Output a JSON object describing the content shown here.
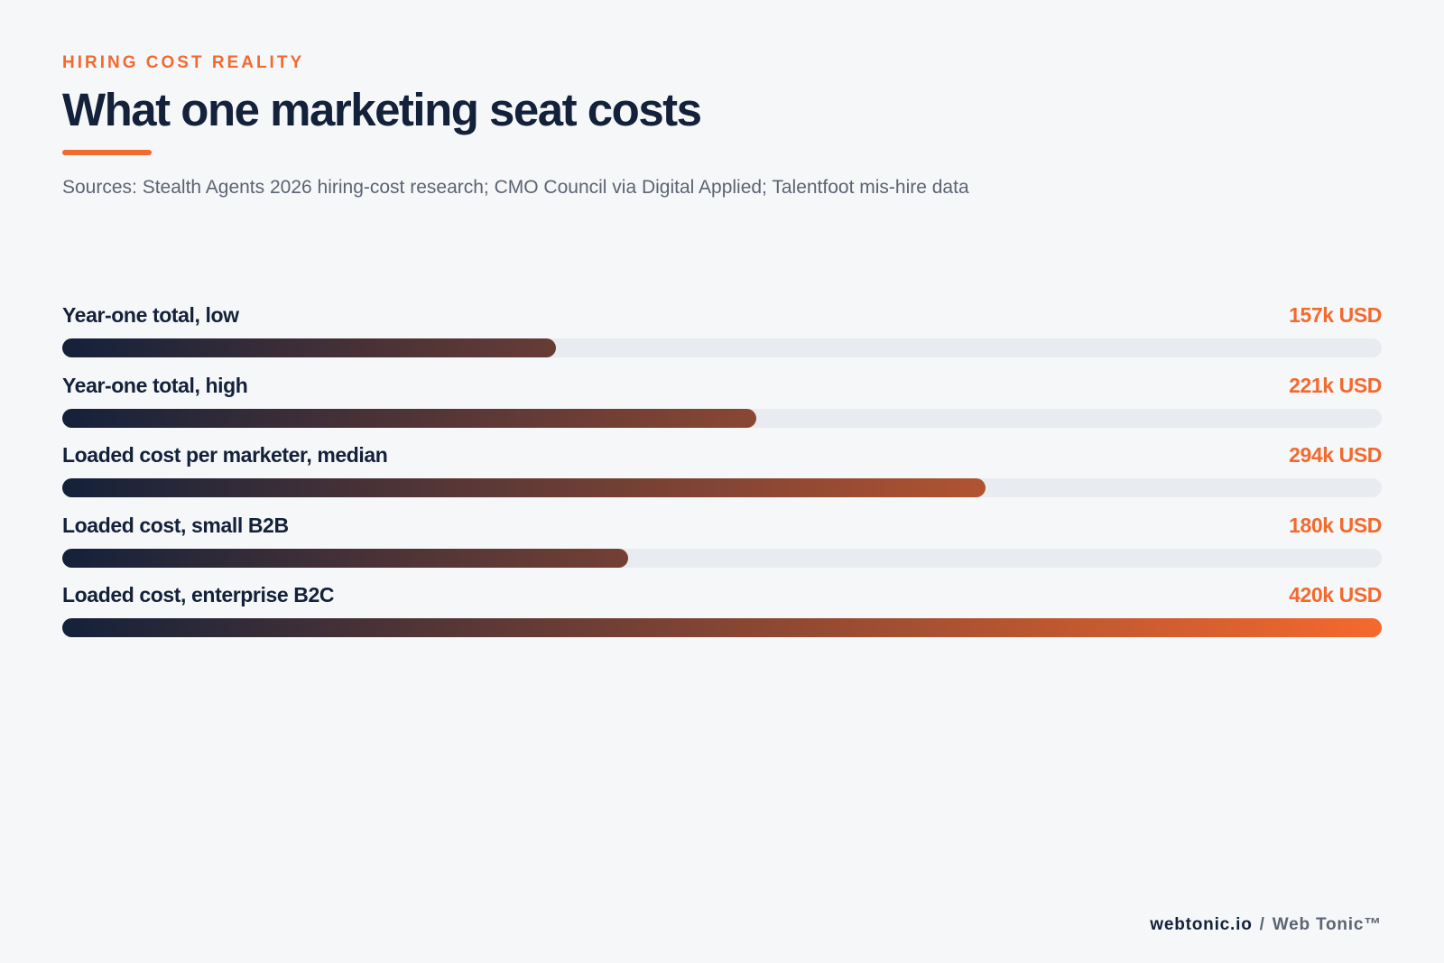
{
  "header": {
    "eyebrow": "HIRING COST REALITY",
    "title": "What one marketing seat costs",
    "sources": "Sources: Stealth Agents 2026 hiring-cost research; CMO Council via Digital Applied; Talentfoot mis-hire data"
  },
  "chart_data": {
    "type": "bar",
    "orientation": "horizontal",
    "title": "What one marketing seat costs",
    "categories": [
      "Year-one total, low",
      "Year-one total, high",
      "Loaded cost per marketer, median",
      "Loaded cost, small B2B",
      "Loaded cost, enterprise B2C"
    ],
    "values": [
      157,
      221,
      294,
      180,
      420
    ],
    "value_labels": [
      "157k USD",
      "221k USD",
      "294k USD",
      "180k USD",
      "420k USD"
    ],
    "unit": "k USD",
    "xlim": [
      0,
      420
    ],
    "grid": false,
    "legend": "none",
    "colors": {
      "gradient_start": "#14213a",
      "gradient_end": "#f5692d",
      "track": "#e8ebef",
      "value_text": "#f26a2e"
    }
  },
  "footer": {
    "domain": "webtonic.io",
    "separator": "/",
    "brand": "Web Tonic™"
  }
}
